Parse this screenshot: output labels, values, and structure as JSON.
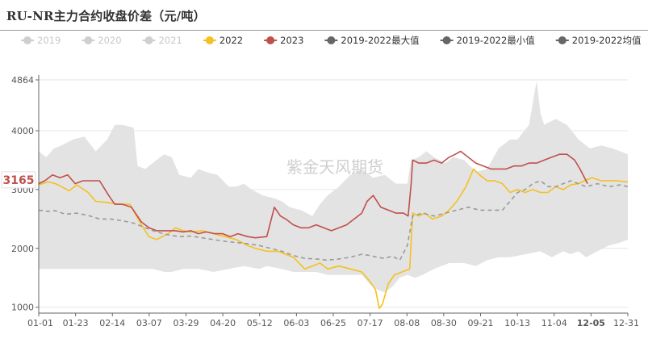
{
  "title": "RU-NR主力合约收盘价差（元/吨）",
  "watermark": "紫金天风期货",
  "colors": {
    "band": "#e3e3e3",
    "y2022": "#f5c020",
    "y2023": "#c0504d",
    "mean": "#9a9a9a",
    "legend_inactive": "#cfcfcf",
    "legend_dark": "#666666",
    "highlight": "#c0504d"
  },
  "chart_data": {
    "type": "line",
    "title": "RU-NR主力合约收盘价差（元/吨）",
    "x_ticks": [
      "01-01",
      "01-23",
      "02-14",
      "03-07",
      "03-29",
      "04-20",
      "05-12",
      "06-03",
      "06-25",
      "07-17",
      "08-08",
      "08-30",
      "09-21",
      "10-13",
      "11-04",
      "12-05",
      "12-31"
    ],
    "highlight_x_tick": "12-05",
    "y_ticks": [
      1000,
      2000,
      3000,
      4000,
      4864
    ],
    "highlight_y_value": "3165",
    "ylim": [
      900,
      4864
    ],
    "legend": [
      {
        "name": "2019",
        "active": false,
        "color": "#cfcfcf",
        "marker": "circle"
      },
      {
        "name": "2020",
        "active": false,
        "color": "#cfcfcf",
        "marker": "circle"
      },
      {
        "name": "2021",
        "active": false,
        "color": "#cfcfcf",
        "marker": "circle"
      },
      {
        "name": "2022",
        "active": true,
        "color": "#f5c020",
        "marker": "circle"
      },
      {
        "name": "2023",
        "active": true,
        "color": "#c0504d",
        "marker": "circle"
      },
      {
        "name": "2019-2022最大值",
        "active": true,
        "color": "#666666",
        "marker": "circle"
      },
      {
        "name": "2019-2022最小值",
        "active": true,
        "color": "#666666",
        "marker": "circle"
      },
      {
        "name": "2019-2022均值",
        "active": true,
        "color": "#666666",
        "marker": "circle"
      }
    ],
    "band_max": [
      [
        0,
        3650
      ],
      [
        10,
        3550
      ],
      [
        20,
        3700
      ],
      [
        30,
        3750
      ],
      [
        45,
        3850
      ],
      [
        60,
        3900
      ],
      [
        75,
        3650
      ],
      [
        90,
        3850
      ],
      [
        100,
        4100
      ],
      [
        110,
        4100
      ],
      [
        125,
        4050
      ],
      [
        130,
        3400
      ],
      [
        140,
        3350
      ],
      [
        155,
        3500
      ],
      [
        165,
        3600
      ],
      [
        175,
        3550
      ],
      [
        185,
        3250
      ],
      [
        200,
        3200
      ],
      [
        210,
        3350
      ],
      [
        220,
        3300
      ],
      [
        235,
        3250
      ],
      [
        250,
        3050
      ],
      [
        260,
        3050
      ],
      [
        270,
        3100
      ],
      [
        280,
        3000
      ],
      [
        295,
        2900
      ],
      [
        310,
        2850
      ],
      [
        320,
        2800
      ],
      [
        330,
        2700
      ],
      [
        345,
        2650
      ],
      [
        360,
        2550
      ],
      [
        370,
        2750
      ],
      [
        380,
        2900
      ],
      [
        395,
        3050
      ],
      [
        410,
        3250
      ],
      [
        425,
        3350
      ],
      [
        440,
        3200
      ],
      [
        455,
        3250
      ],
      [
        470,
        3100
      ],
      [
        485,
        3100
      ],
      [
        490,
        3500
      ],
      [
        500,
        3550
      ],
      [
        510,
        3650
      ],
      [
        520,
        3550
      ],
      [
        535,
        3450
      ],
      [
        545,
        3550
      ],
      [
        560,
        3500
      ],
      [
        575,
        3300
      ],
      [
        590,
        3350
      ],
      [
        605,
        3700
      ],
      [
        620,
        3850
      ],
      [
        630,
        3850
      ],
      [
        645,
        4100
      ],
      [
        655,
        4850
      ],
      [
        660,
        4300
      ],
      [
        665,
        4100
      ],
      [
        680,
        4200
      ],
      [
        695,
        4100
      ],
      [
        710,
        3850
      ],
      [
        725,
        3700
      ],
      [
        740,
        3750
      ],
      [
        755,
        3700
      ],
      [
        765,
        3650
      ],
      [
        775,
        3600
      ]
    ],
    "band_min": [
      [
        0,
        1650
      ],
      [
        15,
        1650
      ],
      [
        30,
        1650
      ],
      [
        60,
        1650
      ],
      [
        90,
        1650
      ],
      [
        120,
        1650
      ],
      [
        150,
        1650
      ],
      [
        165,
        1600
      ],
      [
        175,
        1600
      ],
      [
        190,
        1650
      ],
      [
        210,
        1650
      ],
      [
        230,
        1600
      ],
      [
        250,
        1650
      ],
      [
        270,
        1700
      ],
      [
        290,
        1650
      ],
      [
        300,
        1700
      ],
      [
        320,
        1650
      ],
      [
        335,
        1600
      ],
      [
        350,
        1600
      ],
      [
        365,
        1600
      ],
      [
        380,
        1550
      ],
      [
        395,
        1550
      ],
      [
        410,
        1550
      ],
      [
        425,
        1550
      ],
      [
        435,
        1400
      ],
      [
        445,
        1300
      ],
      [
        455,
        1250
      ],
      [
        465,
        1350
      ],
      [
        475,
        1500
      ],
      [
        485,
        1550
      ],
      [
        495,
        1500
      ],
      [
        505,
        1550
      ],
      [
        520,
        1650
      ],
      [
        540,
        1750
      ],
      [
        560,
        1750
      ],
      [
        575,
        1700
      ],
      [
        590,
        1800
      ],
      [
        605,
        1850
      ],
      [
        620,
        1850
      ],
      [
        640,
        1900
      ],
      [
        660,
        1950
      ],
      [
        675,
        1850
      ],
      [
        690,
        1950
      ],
      [
        700,
        1900
      ],
      [
        710,
        1950
      ],
      [
        720,
        1850
      ],
      [
        735,
        1950
      ],
      [
        750,
        2050
      ],
      [
        765,
        2100
      ],
      [
        775,
        2150
      ]
    ],
    "series": [
      {
        "name": "2022",
        "color": "#f5c020",
        "points": [
          [
            0,
            3080
          ],
          [
            12,
            3130
          ],
          [
            22,
            3100
          ],
          [
            30,
            3050
          ],
          [
            40,
            2980
          ],
          [
            50,
            3080
          ],
          [
            65,
            2950
          ],
          [
            75,
            2800
          ],
          [
            90,
            2780
          ],
          [
            105,
            2750
          ],
          [
            120,
            2750
          ],
          [
            135,
            2400
          ],
          [
            145,
            2200
          ],
          [
            155,
            2150
          ],
          [
            170,
            2250
          ],
          [
            180,
            2350
          ],
          [
            190,
            2300
          ],
          [
            200,
            2280
          ],
          [
            215,
            2300
          ],
          [
            230,
            2250
          ],
          [
            245,
            2200
          ],
          [
            260,
            2150
          ],
          [
            275,
            2050
          ],
          [
            285,
            2000
          ],
          [
            300,
            1950
          ],
          [
            315,
            1950
          ],
          [
            325,
            1900
          ],
          [
            335,
            1850
          ],
          [
            350,
            1650
          ],
          [
            360,
            1700
          ],
          [
            370,
            1750
          ],
          [
            380,
            1650
          ],
          [
            395,
            1700
          ],
          [
            410,
            1650
          ],
          [
            425,
            1600
          ],
          [
            435,
            1450
          ],
          [
            443,
            1300
          ],
          [
            448,
            980
          ],
          [
            452,
            1050
          ],
          [
            460,
            1400
          ],
          [
            468,
            1550
          ],
          [
            478,
            1600
          ],
          [
            488,
            1650
          ],
          [
            492,
            2600
          ],
          [
            500,
            2550
          ],
          [
            508,
            2600
          ],
          [
            518,
            2500
          ],
          [
            530,
            2550
          ],
          [
            540,
            2650
          ],
          [
            550,
            2800
          ],
          [
            562,
            3050
          ],
          [
            572,
            3350
          ],
          [
            580,
            3250
          ],
          [
            590,
            3150
          ],
          [
            600,
            3150
          ],
          [
            610,
            3100
          ],
          [
            620,
            2950
          ],
          [
            630,
            3000
          ],
          [
            640,
            2950
          ],
          [
            650,
            3000
          ],
          [
            660,
            2950
          ],
          [
            670,
            2950
          ],
          [
            680,
            3050
          ],
          [
            690,
            3000
          ],
          [
            700,
            3080
          ],
          [
            710,
            3100
          ],
          [
            718,
            3150
          ],
          [
            728,
            3200
          ],
          [
            740,
            3150
          ],
          [
            750,
            3150
          ],
          [
            760,
            3150
          ],
          [
            775,
            3130
          ]
        ]
      },
      {
        "name": "2023",
        "color": "#c0504d",
        "points": [
          [
            0,
            3100
          ],
          [
            8,
            3150
          ],
          [
            18,
            3250
          ],
          [
            28,
            3200
          ],
          [
            38,
            3250
          ],
          [
            48,
            3100
          ],
          [
            58,
            3150
          ],
          [
            68,
            3150
          ],
          [
            80,
            3150
          ],
          [
            92,
            2900
          ],
          [
            100,
            2750
          ],
          [
            110,
            2750
          ],
          [
            122,
            2700
          ],
          [
            135,
            2450
          ],
          [
            145,
            2350
          ],
          [
            155,
            2300
          ],
          [
            168,
            2300
          ],
          [
            180,
            2300
          ],
          [
            190,
            2280
          ],
          [
            200,
            2300
          ],
          [
            210,
            2250
          ],
          [
            220,
            2280
          ],
          [
            232,
            2250
          ],
          [
            242,
            2250
          ],
          [
            252,
            2200
          ],
          [
            262,
            2250
          ],
          [
            275,
            2200
          ],
          [
            285,
            2180
          ],
          [
            300,
            2200
          ],
          [
            305,
            2450
          ],
          [
            310,
            2700
          ],
          [
            318,
            2550
          ],
          [
            325,
            2500
          ],
          [
            335,
            2400
          ],
          [
            345,
            2350
          ],
          [
            355,
            2350
          ],
          [
            365,
            2400
          ],
          [
            375,
            2350
          ],
          [
            385,
            2300
          ],
          [
            395,
            2350
          ],
          [
            405,
            2400
          ],
          [
            415,
            2500
          ],
          [
            425,
            2600
          ],
          [
            432,
            2800
          ],
          [
            440,
            2900
          ],
          [
            450,
            2700
          ],
          [
            460,
            2650
          ],
          [
            470,
            2600
          ],
          [
            480,
            2600
          ],
          [
            486,
            2550
          ],
          [
            490,
            3100
          ],
          [
            492,
            3500
          ],
          [
            500,
            3450
          ],
          [
            510,
            3450
          ],
          [
            520,
            3500
          ],
          [
            530,
            3450
          ],
          [
            540,
            3550
          ],
          [
            548,
            3600
          ],
          [
            555,
            3650
          ],
          [
            565,
            3550
          ],
          [
            575,
            3450
          ],
          [
            585,
            3400
          ],
          [
            595,
            3350
          ],
          [
            605,
            3350
          ],
          [
            615,
            3350
          ],
          [
            625,
            3400
          ],
          [
            635,
            3400
          ],
          [
            645,
            3450
          ],
          [
            655,
            3450
          ],
          [
            665,
            3500
          ],
          [
            675,
            3550
          ],
          [
            685,
            3600
          ],
          [
            695,
            3600
          ],
          [
            705,
            3500
          ],
          [
            712,
            3350
          ],
          [
            718,
            3200
          ],
          [
            722,
            3100
          ]
        ]
      },
      {
        "name": "2019-2022均值",
        "color": "#9a9a9a",
        "points": [
          [
            0,
            2650
          ],
          [
            12,
            2630
          ],
          [
            22,
            2640
          ],
          [
            35,
            2580
          ],
          [
            50,
            2600
          ],
          [
            65,
            2560
          ],
          [
            80,
            2500
          ],
          [
            95,
            2500
          ],
          [
            110,
            2470
          ],
          [
            125,
            2430
          ],
          [
            140,
            2350
          ],
          [
            155,
            2280
          ],
          [
            170,
            2230
          ],
          [
            185,
            2200
          ],
          [
            200,
            2210
          ],
          [
            215,
            2180
          ],
          [
            230,
            2150
          ],
          [
            245,
            2120
          ],
          [
            260,
            2100
          ],
          [
            275,
            2080
          ],
          [
            290,
            2050
          ],
          [
            305,
            2000
          ],
          [
            320,
            1950
          ],
          [
            335,
            1880
          ],
          [
            350,
            1830
          ],
          [
            365,
            1820
          ],
          [
            380,
            1800
          ],
          [
            395,
            1820
          ],
          [
            410,
            1850
          ],
          [
            425,
            1900
          ],
          [
            435,
            1880
          ],
          [
            445,
            1850
          ],
          [
            455,
            1830
          ],
          [
            465,
            1870
          ],
          [
            475,
            1800
          ],
          [
            485,
            2050
          ],
          [
            492,
            2550
          ],
          [
            505,
            2600
          ],
          [
            520,
            2550
          ],
          [
            535,
            2600
          ],
          [
            550,
            2650
          ],
          [
            565,
            2700
          ],
          [
            580,
            2650
          ],
          [
            595,
            2650
          ],
          [
            610,
            2650
          ],
          [
            620,
            2800
          ],
          [
            630,
            2950
          ],
          [
            640,
            3000
          ],
          [
            650,
            3100
          ],
          [
            660,
            3150
          ],
          [
            670,
            3050
          ],
          [
            680,
            3050
          ],
          [
            690,
            3100
          ],
          [
            700,
            3150
          ],
          [
            710,
            3100
          ],
          [
            720,
            3050
          ],
          [
            735,
            3100
          ],
          [
            750,
            3050
          ],
          [
            765,
            3080
          ],
          [
            775,
            3050
          ]
        ]
      }
    ]
  }
}
